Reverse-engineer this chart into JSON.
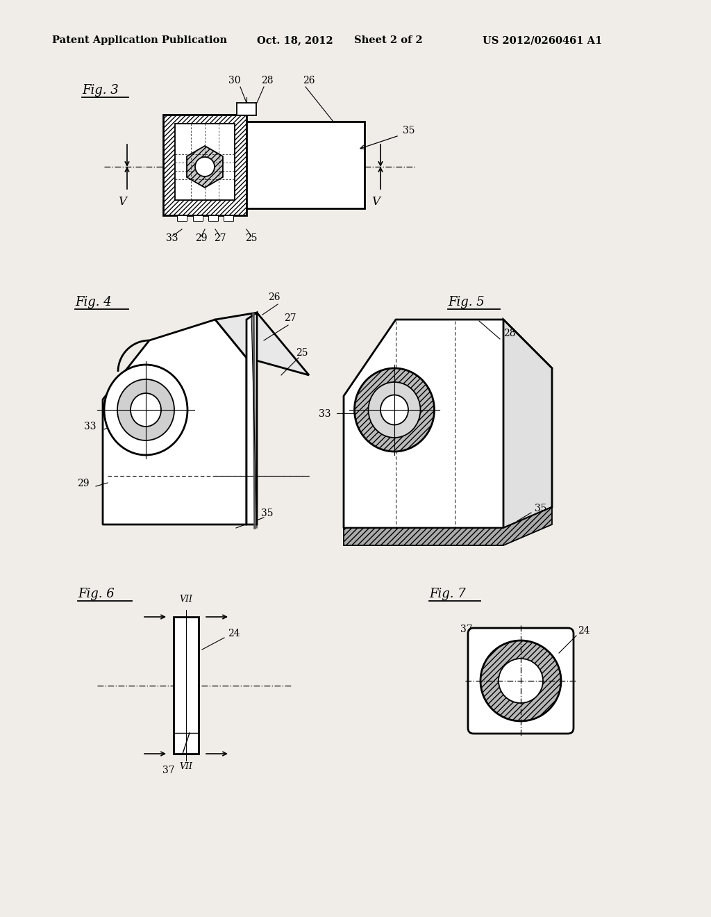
{
  "bg_color": "#f0ede8",
  "header_text": "Patent Application Publication",
  "header_date": "Oct. 18, 2012",
  "header_sheet": "Sheet 2 of 2",
  "header_patent": "US 2012/0260461 A1",
  "fig3_label": "Fig. 3",
  "fig4_label": "Fig. 4",
  "fig5_label": "Fig. 5",
  "fig6_label": "Fig. 6",
  "fig7_label": "Fig. 7"
}
